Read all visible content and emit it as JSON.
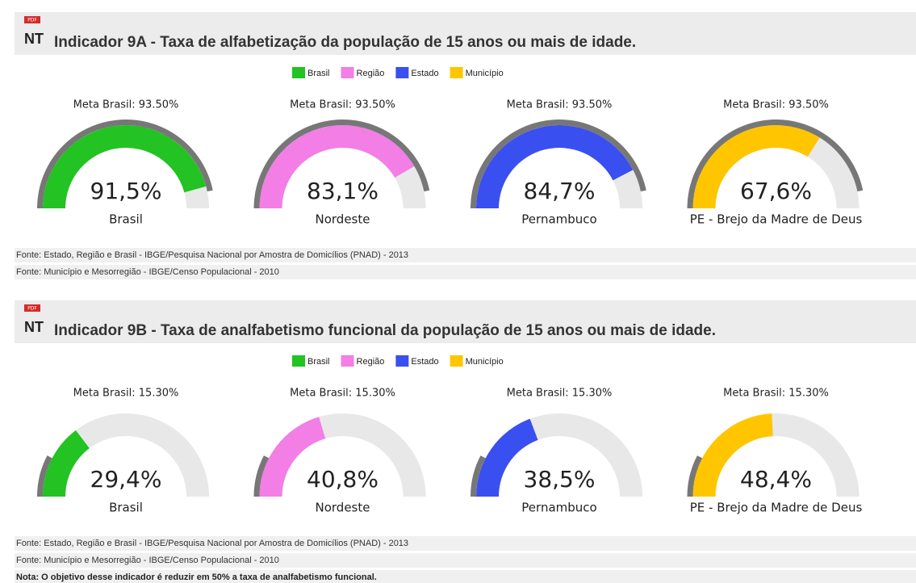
{
  "sections": [
    {
      "icon_badge": "PDF",
      "icon_label": "NT",
      "title": "Indicador 9A - Taxa de alfabetização da população de 15 anos ou mais de idade.",
      "legend": [
        {
          "name": "Brasil",
          "color": "#22c322"
        },
        {
          "name": "Região",
          "color": "#f27ee6"
        },
        {
          "name": "Estado",
          "color": "#3a4ff0"
        },
        {
          "name": "Município",
          "color": "#ffc600"
        }
      ],
      "range": [
        0,
        100
      ],
      "gauges": [
        {
          "target_label": "Meta Brasil: 93.50%",
          "target": 93.5,
          "value": 91.5,
          "value_label": "91,5%",
          "name": "Brasil",
          "color": "#22c322"
        },
        {
          "target_label": "Meta Brasil: 93.50%",
          "target": 93.5,
          "value": 83.1,
          "value_label": "83,1%",
          "name": "Nordeste",
          "color": "#f27ee6"
        },
        {
          "target_label": "Meta Brasil: 93.50%",
          "target": 93.5,
          "value": 84.7,
          "value_label": "84,7%",
          "name": "Pernambuco",
          "color": "#3a4ff0"
        },
        {
          "target_label": "Meta Brasil: 93.50%",
          "target": 93.5,
          "value": 67.6,
          "value_label": "67,6%",
          "name": "PE - Brejo da Madre de Deus",
          "color": "#ffc600"
        }
      ],
      "sources": [
        "Fonte: Estado, Região e Brasil - IBGE/Pesquisa Nacional por Amostra de Domicílios (PNAD) - 2013",
        "Fonte: Município e Mesorregião - IBGE/Censo Populacional - 2010"
      ]
    },
    {
      "icon_badge": "PDF",
      "icon_label": "NT",
      "title": "Indicador 9B - Taxa de analfabetismo funcional da população de 15 anos ou mais de idade.",
      "legend": [
        {
          "name": "Brasil",
          "color": "#22c322"
        },
        {
          "name": "Região",
          "color": "#f27ee6"
        },
        {
          "name": "Estado",
          "color": "#3a4ff0"
        },
        {
          "name": "Município",
          "color": "#ffc600"
        }
      ],
      "range": [
        0,
        100
      ],
      "gauges": [
        {
          "target_label": "Meta Brasil: 15.30%",
          "target": 15.3,
          "value": 29.4,
          "value_label": "29,4%",
          "name": "Brasil",
          "color": "#22c322"
        },
        {
          "target_label": "Meta Brasil: 15.30%",
          "target": 15.3,
          "value": 40.8,
          "value_label": "40,8%",
          "name": "Nordeste",
          "color": "#f27ee6"
        },
        {
          "target_label": "Meta Brasil: 15.30%",
          "target": 15.3,
          "value": 38.5,
          "value_label": "38,5%",
          "name": "Pernambuco",
          "color": "#3a4ff0"
        },
        {
          "target_label": "Meta Brasil: 15.30%",
          "target": 15.3,
          "value": 48.4,
          "value_label": "48,4%",
          "name": "PE - Brejo da Madre de Deus",
          "color": "#ffc600"
        }
      ],
      "sources": [
        "Fonte: Estado, Região e Brasil - IBGE/Pesquisa Nacional por Amostra de Domicílios (PNAD) - 2013",
        "Fonte: Município e Mesorregião - IBGE/Censo Populacional - 2010"
      ],
      "note": "Nota: O objetivo desse indicador é reduzir em 50% a taxa de analfabetismo funcional."
    }
  ]
}
